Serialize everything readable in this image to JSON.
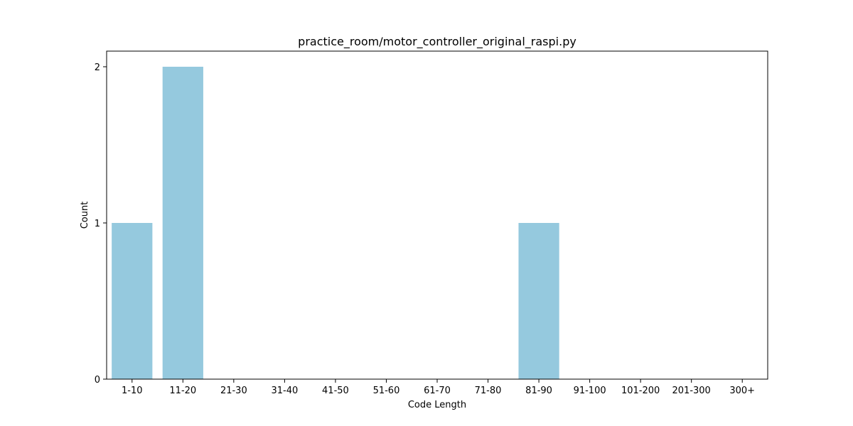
{
  "chart_data": {
    "type": "bar",
    "title": "practice_room/motor_controller_original_raspi.py",
    "xlabel": "Code Length",
    "ylabel": "Count",
    "categories": [
      "1-10",
      "11-20",
      "21-30",
      "31-40",
      "41-50",
      "51-60",
      "61-70",
      "71-80",
      "81-90",
      "91-100",
      "101-200",
      "201-300",
      "300+"
    ],
    "values": [
      1,
      2,
      0,
      0,
      0,
      0,
      0,
      0,
      1,
      0,
      0,
      0,
      0
    ],
    "ylim": [
      0,
      2.1
    ],
    "yticks": [
      0,
      1,
      2
    ],
    "grid": false,
    "legend": "none",
    "bar_color": "#95c9de"
  }
}
